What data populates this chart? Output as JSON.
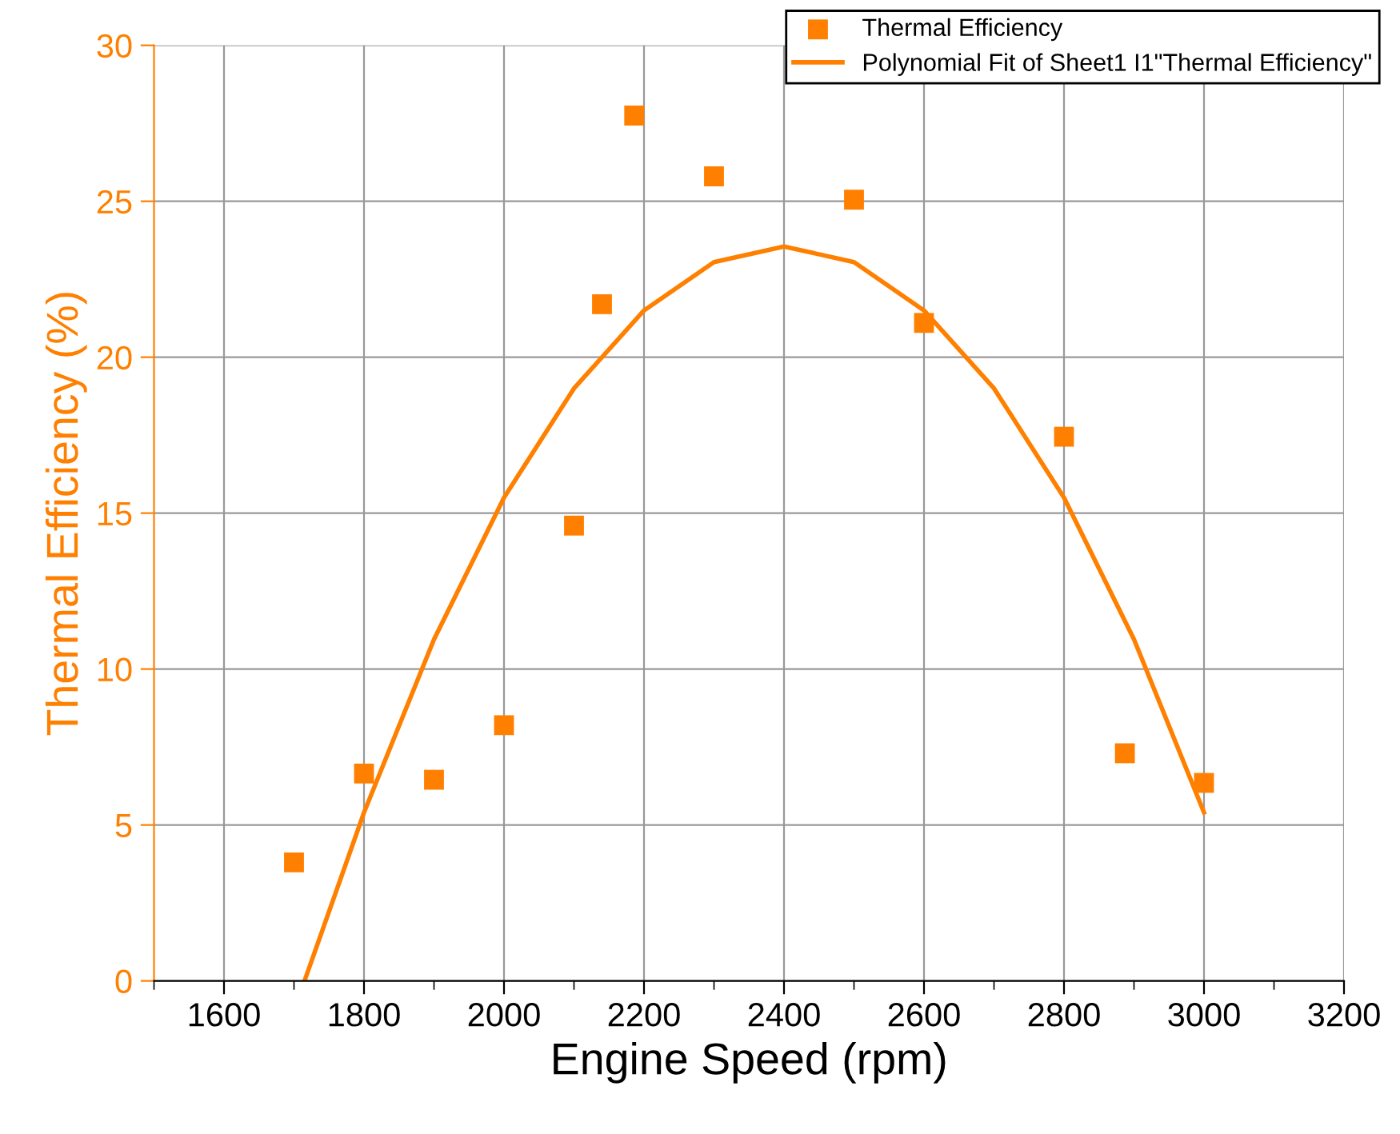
{
  "chart_data": {
    "type": "scatter",
    "xlabel": "Engine Speed (rpm)",
    "ylabel": "Thermal Efficiency (%)",
    "xlim": [
      1500,
      3200
    ],
    "xticks": [
      1600,
      1800,
      2000,
      2200,
      2400,
      2600,
      2800,
      3000,
      3200
    ],
    "ylim": [
      0,
      30
    ],
    "yticks": [
      0,
      5,
      10,
      15,
      20,
      25,
      30
    ],
    "grid": true,
    "legend": "top right",
    "series": [
      {
        "name": "Thermal Efficiency",
        "marker": "square",
        "color": "#ff8000",
        "x": [
          1700,
          1800,
          1900,
          2000,
          2100,
          2140,
          2186,
          2300,
          2500,
          2600,
          2800,
          2887,
          3000
        ],
        "values": [
          3.8,
          6.65,
          6.45,
          8.2,
          14.6,
          21.7,
          27.75,
          25.8,
          25.05,
          21.1,
          17.45,
          7.3,
          6.35
        ]
      },
      {
        "name": "Polynomial Fit of Sheet1 I1\"Thermal Efficiency\"",
        "type": "line",
        "marker": "none",
        "line_style": "solid",
        "color": "#ff8000",
        "x": [
          1715,
          1800,
          1900,
          2000,
          2100,
          2200,
          2300,
          2400,
          2500,
          2600,
          2700,
          2800,
          2900,
          3000
        ],
        "values": [
          0,
          5.4,
          10.95,
          15.5,
          19.0,
          21.5,
          23.05,
          23.55,
          23.05,
          21.5,
          19.0,
          15.5,
          10.95,
          5.4
        ]
      }
    ]
  }
}
